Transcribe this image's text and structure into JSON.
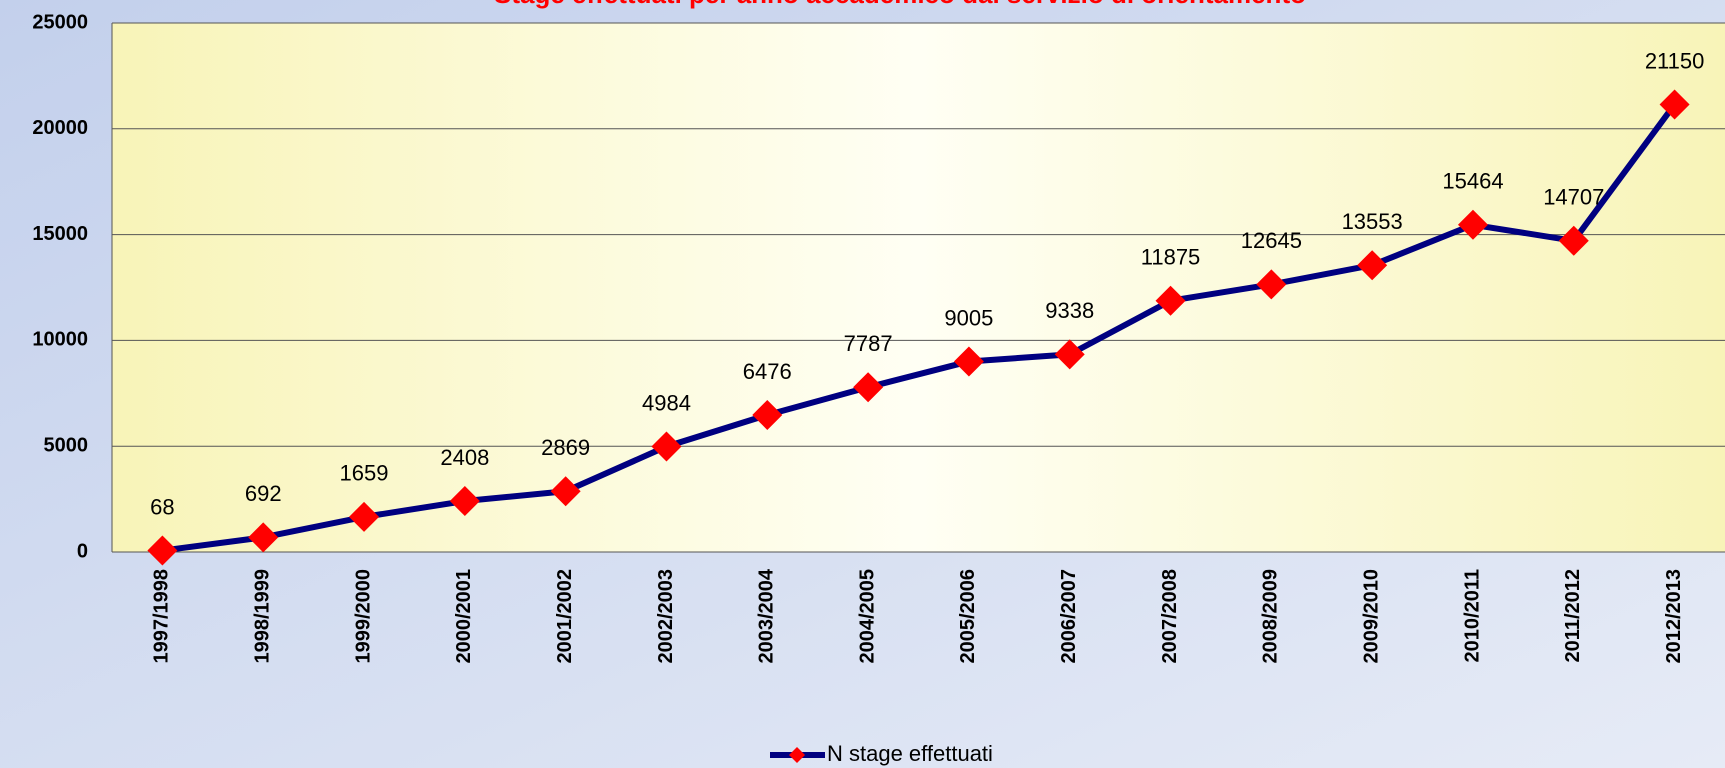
{
  "chart_data": {
    "type": "line",
    "title": "Stage effettuati per anno accademico dal servizio di orientamento",
    "categories": [
      "1997/1998",
      "1998/1999",
      "1999/2000",
      "2000/2001",
      "2001/2002",
      "2002/2003",
      "2003/2004",
      "2004/2005",
      "2005/2006",
      "2006/2007",
      "2007/2008",
      "2008/2009",
      "2009/2010",
      "2010/2011",
      "2011/2012",
      "2012/2013"
    ],
    "series": [
      {
        "name": "N stage effettuati",
        "color": "#000080",
        "marker_color": "#ff0000",
        "values": [
          68,
          692,
          1659,
          2408,
          2869,
          4984,
          6476,
          7787,
          9005,
          9338,
          11875,
          12645,
          13553,
          15464,
          14707,
          21150
        ]
      }
    ],
    "ylim": [
      0,
      25000
    ],
    "yticks": [
      0,
      5000,
      10000,
      15000,
      20000,
      25000
    ],
    "grid": true,
    "legend": "bottom"
  }
}
